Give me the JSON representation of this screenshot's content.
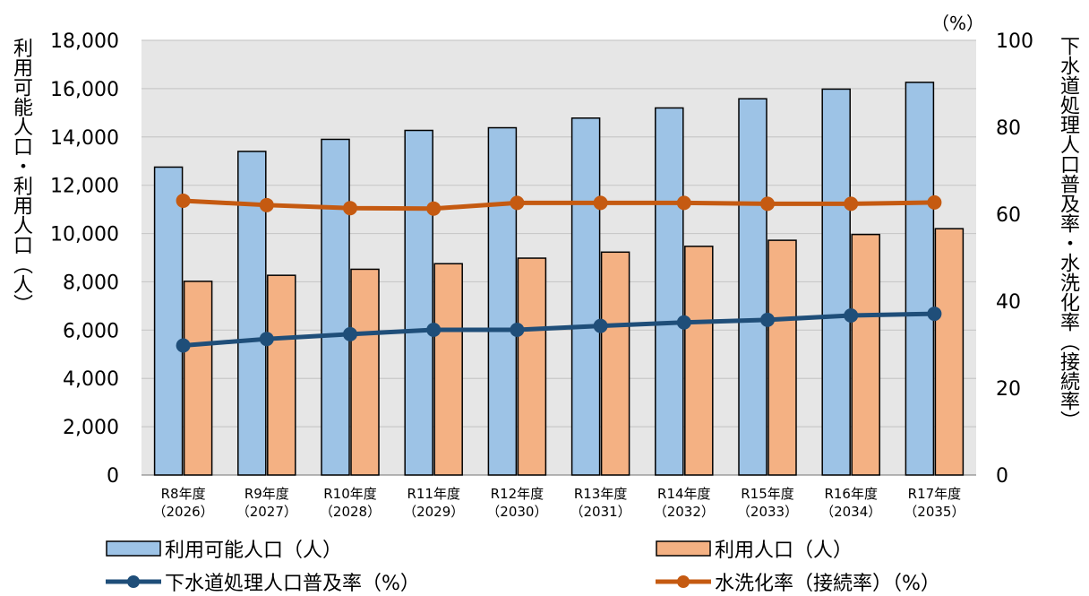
{
  "chart_data": {
    "type": "bar+line",
    "categories": [
      [
        "R8年度",
        "（2026）"
      ],
      [
        "R9年度",
        "（2027）"
      ],
      [
        "R10年度",
        "（2028）"
      ],
      [
        "R11年度",
        "（2029）"
      ],
      [
        "R12年度",
        "（2030）"
      ],
      [
        "R13年度",
        "（2031）"
      ],
      [
        "R14年度",
        "（2032）"
      ],
      [
        "R15年度",
        "（2033）"
      ],
      [
        "R16年度",
        "（2034）"
      ],
      [
        "R17年度",
        "（2035）"
      ]
    ],
    "series": [
      {
        "name": "利用可能人口（人）",
        "type": "bar",
        "axis": "left",
        "color": "#9dc3e6",
        "values": [
          12750,
          13400,
          13900,
          14270,
          14380,
          14780,
          15200,
          15580,
          15980,
          16260
        ]
      },
      {
        "name": "利用人口（人）",
        "type": "bar",
        "axis": "left",
        "color": "#f4b183",
        "values": [
          8020,
          8270,
          8520,
          8750,
          8980,
          9230,
          9470,
          9720,
          9960,
          10200
        ]
      },
      {
        "name": "下水道処理人口普及率（%）",
        "type": "line",
        "axis": "right",
        "color": "#1f4e79",
        "values": [
          29.8,
          31.3,
          32.4,
          33.4,
          33.4,
          34.3,
          35.1,
          35.7,
          36.7,
          37.1
        ]
      },
      {
        "name": "水洗化率（接続率）（%）",
        "type": "line",
        "axis": "right",
        "color": "#c55a11",
        "values": [
          63.1,
          62.1,
          61.4,
          61.3,
          62.6,
          62.6,
          62.6,
          62.4,
          62.4,
          62.7
        ]
      }
    ],
    "ylabel_left": "利用可能人口・利用人口（人）",
    "ylabel_right": "下水道処理人口普及率・水洗化率（接続率）",
    "right_unit": "（%）",
    "y_left": {
      "min": 0,
      "max": 18000,
      "step": 2000,
      "ticks": [
        "0",
        "2,000",
        "4,000",
        "6,000",
        "8,000",
        "10,000",
        "12,000",
        "14,000",
        "16,000",
        "18,000"
      ]
    },
    "y_right": {
      "min": 0,
      "max": 100,
      "step": 20,
      "ticks": [
        "0",
        "20",
        "40",
        "60",
        "80",
        "100"
      ]
    },
    "grid": true,
    "plot_background": "#e6e6e6",
    "legend_position": "bottom"
  }
}
